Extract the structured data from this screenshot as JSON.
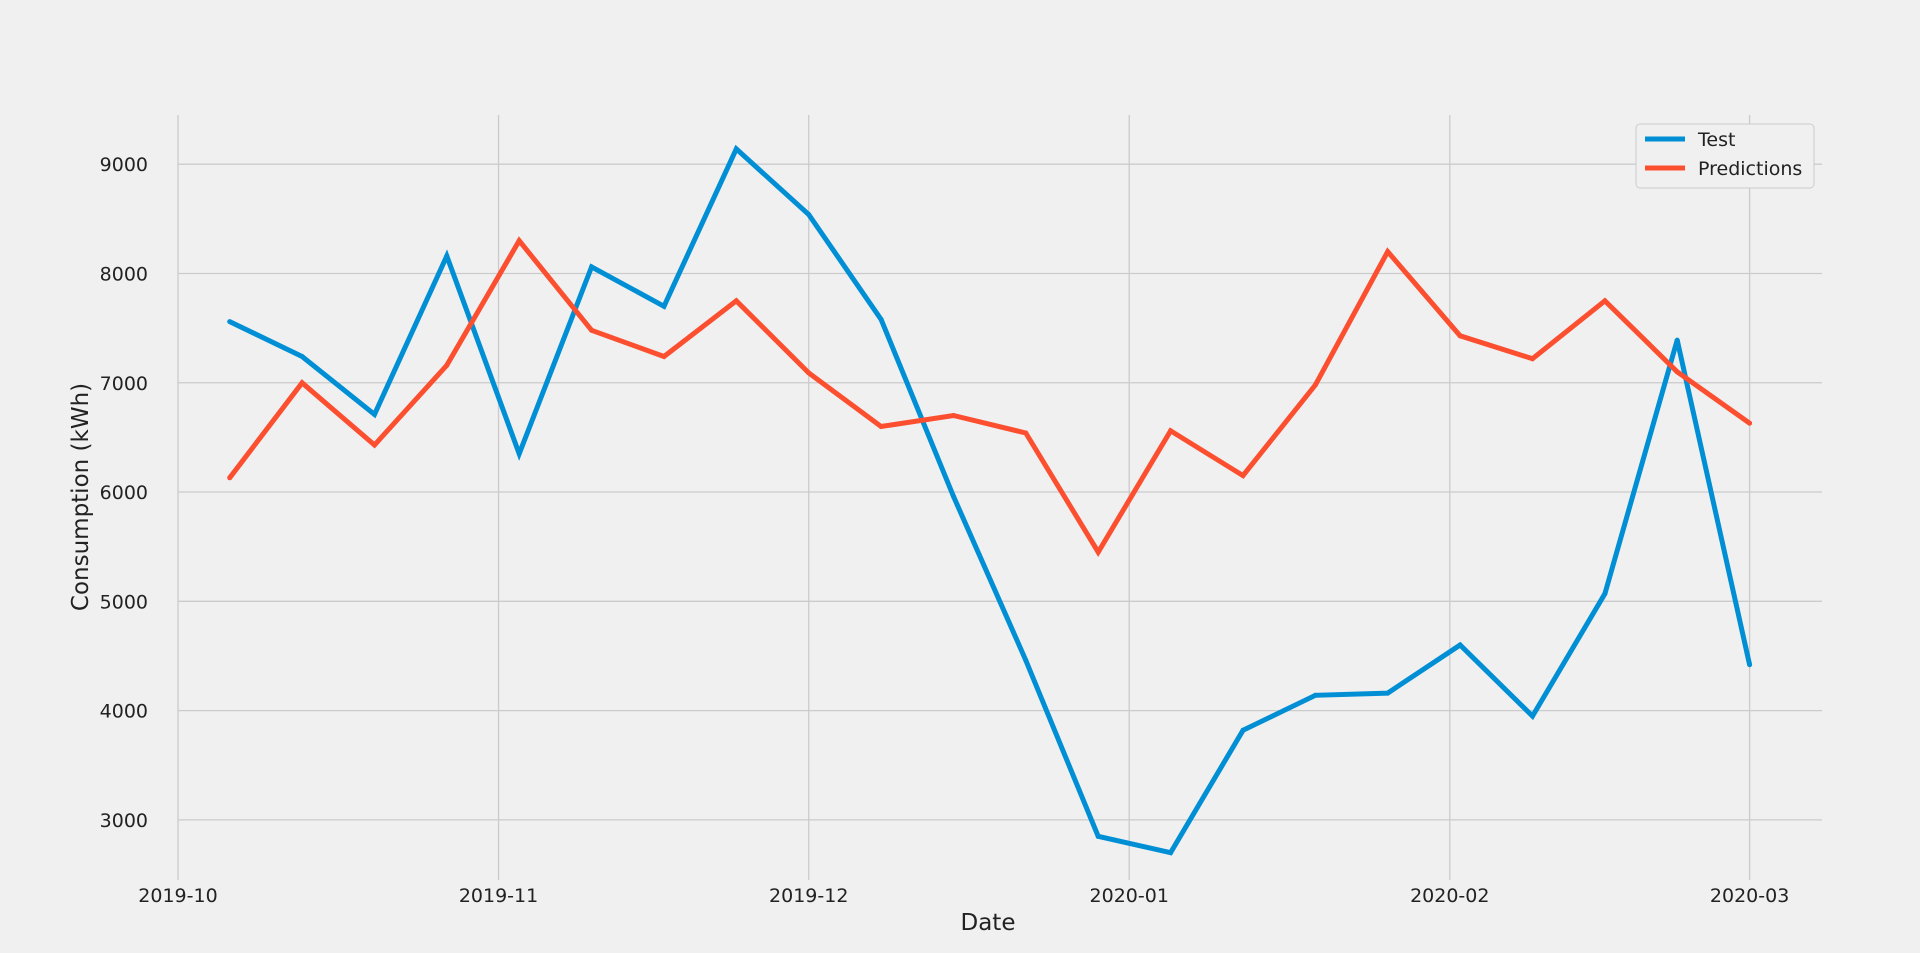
{
  "colors": {
    "background": "#f0f0f0",
    "grid": "#cbcbcb",
    "legend_border": "#cccccc",
    "series_test": "#008fd5",
    "series_predictions": "#fc4f30"
  },
  "chart_data": {
    "type": "line",
    "title": "",
    "xlabel": "Date",
    "ylabel": "Consumption (kWh)",
    "xlim": [
      "2019-10-01",
      "2020-03-08"
    ],
    "ylim": [
      2450,
      9450
    ],
    "grid": true,
    "legend_position": "top-right",
    "x_ticks": [
      {
        "date": "2019-10-01",
        "label": "2019-10"
      },
      {
        "date": "2019-11-01",
        "label": "2019-11"
      },
      {
        "date": "2019-12-01",
        "label": "2019-12"
      },
      {
        "date": "2020-01-01",
        "label": "2020-01"
      },
      {
        "date": "2020-02-01",
        "label": "2020-02"
      },
      {
        "date": "2020-03-01",
        "label": "2020-03"
      }
    ],
    "y_ticks": [
      3000,
      4000,
      5000,
      6000,
      7000,
      8000,
      9000
    ],
    "x": [
      "2019-10-06",
      "2019-10-13",
      "2019-10-20",
      "2019-10-27",
      "2019-11-03",
      "2019-11-10",
      "2019-11-17",
      "2019-11-24",
      "2019-12-01",
      "2019-12-08",
      "2019-12-15",
      "2019-12-22",
      "2019-12-29",
      "2020-01-05",
      "2020-01-12",
      "2020-01-19",
      "2020-01-26",
      "2020-02-02",
      "2020-02-09",
      "2020-02-16",
      "2020-02-23",
      "2020-03-01"
    ],
    "series": [
      {
        "name": "Test",
        "color": "#008fd5",
        "values": [
          7560,
          7240,
          6710,
          8160,
          6350,
          8060,
          7700,
          9140,
          8540,
          7580,
          5960,
          4460,
          2850,
          2700,
          3820,
          4140,
          4160,
          4600,
          3950,
          5070,
          7390,
          4420
        ]
      },
      {
        "name": "Predictions",
        "color": "#fc4f30",
        "values": [
          6130,
          7000,
          6430,
          7160,
          8300,
          7480,
          7240,
          7750,
          7090,
          6600,
          6700,
          6540,
          5450,
          6560,
          6150,
          6980,
          8200,
          7430,
          7220,
          7750,
          7100,
          6630
        ]
      }
    ]
  }
}
